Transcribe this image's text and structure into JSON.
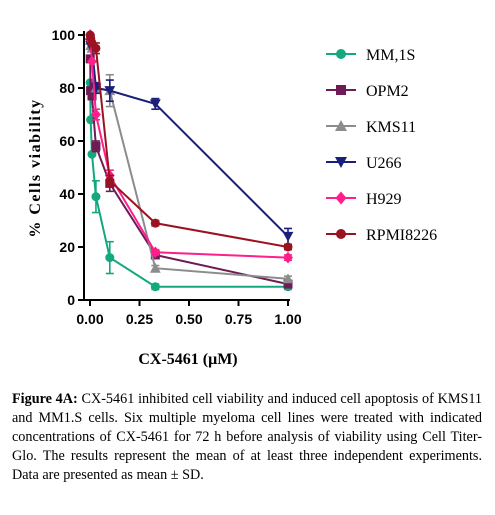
{
  "chart_data": {
    "type": "line",
    "xlabel": "CX-5461 (μM)",
    "ylabel": "% Cells viability",
    "xlim": [
      0,
      1.0
    ],
    "ylim": [
      0,
      100
    ],
    "x_ticks": [
      "0.00",
      "0.25",
      "0.50",
      "0.75",
      "1.00"
    ],
    "x_tick_values": [
      0,
      0.25,
      0.5,
      0.75,
      1.0
    ],
    "y_ticks": [
      "0",
      "20",
      "40",
      "60",
      "80",
      "100"
    ],
    "y_tick_values": [
      0,
      20,
      40,
      60,
      80,
      100
    ],
    "legend_position": "right",
    "x": [
      0.001,
      0.003,
      0.01,
      0.03,
      0.1,
      0.33,
      1.0
    ],
    "series": [
      {
        "name": "MM,1S",
        "color": "#13a87d",
        "marker": "circle",
        "values": [
          82,
          68,
          55,
          39,
          16,
          5,
          5
        ],
        "errors": [
          0,
          0,
          0,
          6,
          6,
          1,
          1
        ]
      },
      {
        "name": "OPM2",
        "color": "#6e1b56",
        "marker": "square",
        "values": [
          91,
          79,
          77,
          58,
          44,
          17,
          6
        ],
        "errors": [
          0,
          0,
          0,
          2,
          3,
          1,
          1
        ]
      },
      {
        "name": "KMS11",
        "color": "#8c8c8c",
        "marker": "triangle-up",
        "values": [
          98,
          96,
          95,
          80,
          79,
          12,
          8
        ],
        "errors": [
          0,
          0,
          0,
          0,
          6,
          1,
          1
        ]
      },
      {
        "name": "U266",
        "color": "#1a1f7a",
        "marker": "triangle-down",
        "values": [
          97,
          96,
          95,
          80,
          79,
          74,
          24
        ],
        "errors": [
          0,
          0,
          0,
          2,
          4,
          2,
          3
        ]
      },
      {
        "name": "H929",
        "color": "#ff1e8a",
        "marker": "diamond",
        "values": [
          100,
          98,
          90,
          70,
          47,
          18,
          16
        ],
        "errors": [
          0,
          0,
          0,
          2,
          2,
          1,
          1
        ]
      },
      {
        "name": "RPMI8226",
        "color": "#9b1220",
        "marker": "circle",
        "values": [
          100,
          99,
          97,
          95,
          45,
          29,
          20
        ],
        "errors": [
          0,
          0,
          0,
          2,
          2,
          1,
          1
        ]
      }
    ]
  },
  "caption": {
    "label": "Figure 4A:",
    "text": " CX-5461 inhibited cell viability and induced cell apoptosis of KMS11 and MM1.S cells. Six multiple myeloma cell lines were treated with indicated concentrations of CX-5461 for 72 h before analysis of viability using Cell Titer-Glo. The results represent the mean of at least three independent experiments. Data are presented as mean ± SD."
  }
}
